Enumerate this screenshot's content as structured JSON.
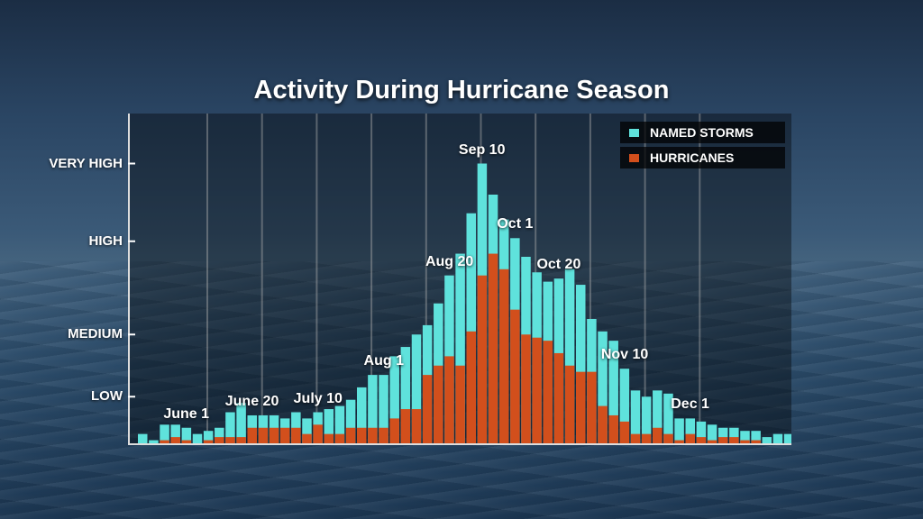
{
  "chart_data": {
    "type": "bar",
    "title": "Activity During Hurricane Season",
    "xlabel": "",
    "ylabel": "",
    "y_tick_labels": [
      "LOW",
      "MEDIUM",
      "HIGH",
      "VERY HIGH"
    ],
    "y_tick_values": [
      15,
      35,
      65,
      90
    ],
    "ylim": [
      0,
      100
    ],
    "grid": true,
    "legend_position": "top-right",
    "annotations": [
      {
        "label": "June 1",
        "bar": 4
      },
      {
        "label": "June 20",
        "bar": 10
      },
      {
        "label": "July 10",
        "bar": 16
      },
      {
        "label": "Aug 1",
        "bar": 22
      },
      {
        "label": "Aug 20",
        "bar": 28
      },
      {
        "label": "Sep 10",
        "bar": 31
      },
      {
        "label": "Oct 1",
        "bar": 34
      },
      {
        "label": "Oct 20",
        "bar": 38
      },
      {
        "label": "Nov 10",
        "bar": 44
      },
      {
        "label": "Dec 1",
        "bar": 50
      }
    ],
    "series": [
      {
        "name": "NAMED STORMS",
        "color": "#5fe2dc",
        "values": [
          3,
          1,
          6,
          6,
          5,
          3,
          4,
          5,
          10,
          13,
          9,
          9,
          9,
          8,
          10,
          8,
          10,
          11,
          12,
          14,
          18,
          22,
          22,
          28,
          31,
          35,
          38,
          45,
          54,
          61,
          74,
          90,
          80,
          72,
          66,
          60,
          55,
          52,
          53,
          56,
          51,
          40,
          36,
          33,
          24,
          17,
          15,
          17,
          16,
          8,
          8,
          7,
          6,
          5,
          5,
          4,
          4,
          2,
          3,
          3
        ]
      },
      {
        "name": "HURRICANES",
        "color": "#d24f1c",
        "values": [
          0,
          0,
          1,
          2,
          1,
          0,
          1,
          2,
          2,
          2,
          5,
          5,
          5,
          5,
          5,
          3,
          6,
          3,
          3,
          5,
          5,
          5,
          5,
          8,
          11,
          11,
          22,
          25,
          28,
          25,
          36,
          54,
          61,
          56,
          43,
          35,
          34,
          33,
          29,
          25,
          23,
          23,
          12,
          9,
          7,
          3,
          3,
          5,
          3,
          1,
          3,
          2,
          1,
          2,
          2,
          1,
          1,
          0,
          0,
          0
        ]
      }
    ]
  }
}
